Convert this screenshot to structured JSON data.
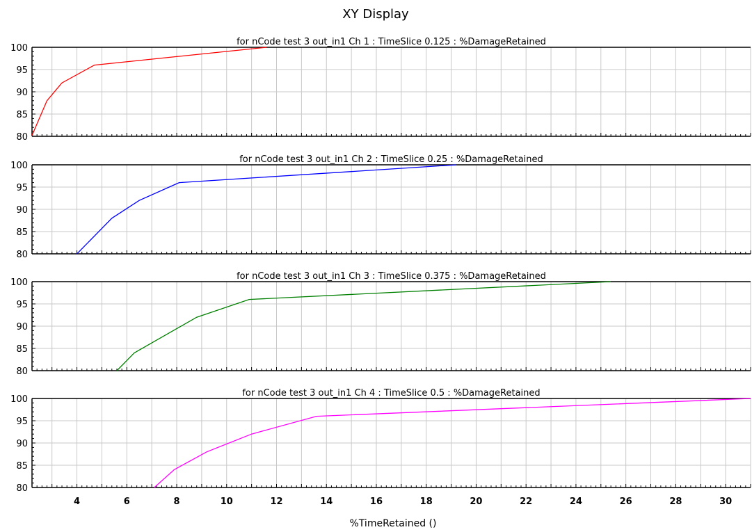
{
  "window": {
    "title": "XY Display"
  },
  "chart_data": {
    "type": "line",
    "title": "XY Display",
    "xlabel": "%TimeRetained ()",
    "xlim": [
      2.2,
      31
    ],
    "ylim": [
      80,
      100
    ],
    "grid": true,
    "x_ticks": [
      4,
      6,
      8,
      10,
      12,
      14,
      16,
      18,
      20,
      22,
      24,
      26,
      28,
      30
    ],
    "y_ticks": [
      80,
      85,
      90,
      95,
      100
    ],
    "panels": [
      {
        "title": "for nCode test 3 out_in1  Ch 1 : TimeSlice 0.125 : %DamageRetained",
        "series": [
          {
            "color": "#ff0000",
            "x": [
              2.2,
              2.8,
              3.4,
              4.7,
              11.6
            ],
            "y": [
              80.2,
              88,
              92,
              96,
              100
            ]
          }
        ]
      },
      {
        "title": "for nCode test 3 out_in1  Ch 2 : TimeSlice 0.25 : %DamageRetained",
        "series": [
          {
            "color": "#0000ff",
            "x": [
              4.0,
              5.4,
              6.5,
              8.1,
              19.2
            ],
            "y": [
              80,
              88,
              92,
              96,
              100
            ]
          }
        ]
      },
      {
        "title": "for nCode test 3 out_in1  Ch 3 : TimeSlice 0.375 : %DamageRetained",
        "series": [
          {
            "color": "#008000",
            "x": [
              5.6,
              6.3,
              8.8,
              10.9,
              25.4
            ],
            "y": [
              80,
              84,
              92,
              96,
              100
            ]
          }
        ]
      },
      {
        "title": "for nCode test 3 out_in1  Ch 4 : TimeSlice 0.5 : %DamageRetained",
        "series": [
          {
            "color": "#ff00ff",
            "x": [
              7.1,
              7.9,
              9.2,
              11.0,
              13.6,
              31.0
            ],
            "y": [
              80,
              84,
              88,
              92,
              96,
              100
            ]
          }
        ]
      }
    ]
  }
}
